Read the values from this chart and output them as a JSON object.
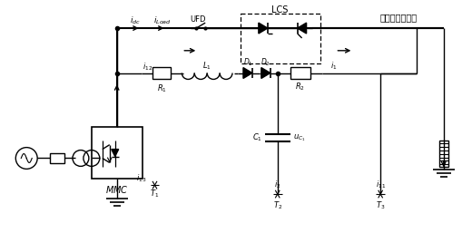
{
  "bg_color": "#ffffff",
  "line_color": "#000000",
  "fig_width": 5.2,
  "fig_height": 2.57,
  "dpi": 100,
  "labels": {
    "i_dc": "$i_{dc}$",
    "i_load": "$i_{Load}$",
    "UFD": "UFD",
    "LCS": "LCS",
    "normal_branch": "通态低损耗支路",
    "MMC": "$MMC$",
    "R1": "$R_1$",
    "R2": "$R_2$",
    "L1": "$L_1$",
    "C1": "$C_1$",
    "uc": "$u_{C_1}$",
    "i12": "$i_{12}$",
    "i13": "$i_{13}$",
    "i1": "$i_1$",
    "i2": "$i_2$",
    "i11": "$i_{11}$",
    "T1": "$T_1$",
    "T2": "$T_2$",
    "T3": "$T_3$",
    "D1": "$D_1$",
    "D2": "$D_2$"
  }
}
